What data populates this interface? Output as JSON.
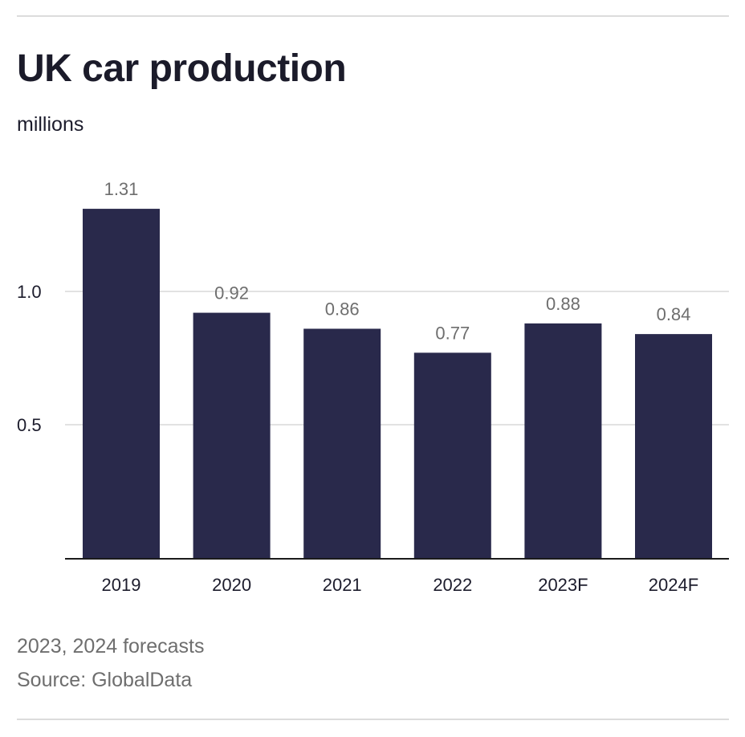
{
  "header": {
    "title": "UK car production",
    "subtitle": "millions"
  },
  "footer": {
    "note": "2023, 2024 forecasts",
    "source": "Source: GlobalData"
  },
  "watermark": "GlobalData",
  "colors": {
    "bar": "#29294b",
    "grid": "#d9d9d9",
    "axis": "#1b1b1b",
    "data_label": "#6e6e6e",
    "tick_label": "#1c1c2c"
  },
  "chart_data": {
    "type": "bar",
    "title": "UK car production",
    "ylabel": "millions",
    "xlabel": "",
    "categories": [
      "2019",
      "2020",
      "2021",
      "2022",
      "2023F",
      "2024F"
    ],
    "values": [
      1.31,
      0.92,
      0.86,
      0.77,
      0.88,
      0.84
    ],
    "data_labels": [
      "1.31",
      "0.92",
      "0.86",
      "0.77",
      "0.88",
      "0.84"
    ],
    "ylim": [
      0,
      1.31
    ],
    "yticks": [
      0.5,
      1.0
    ],
    "ytick_labels": [
      "0.5",
      "1.0"
    ],
    "grid": true,
    "legend": "none"
  }
}
